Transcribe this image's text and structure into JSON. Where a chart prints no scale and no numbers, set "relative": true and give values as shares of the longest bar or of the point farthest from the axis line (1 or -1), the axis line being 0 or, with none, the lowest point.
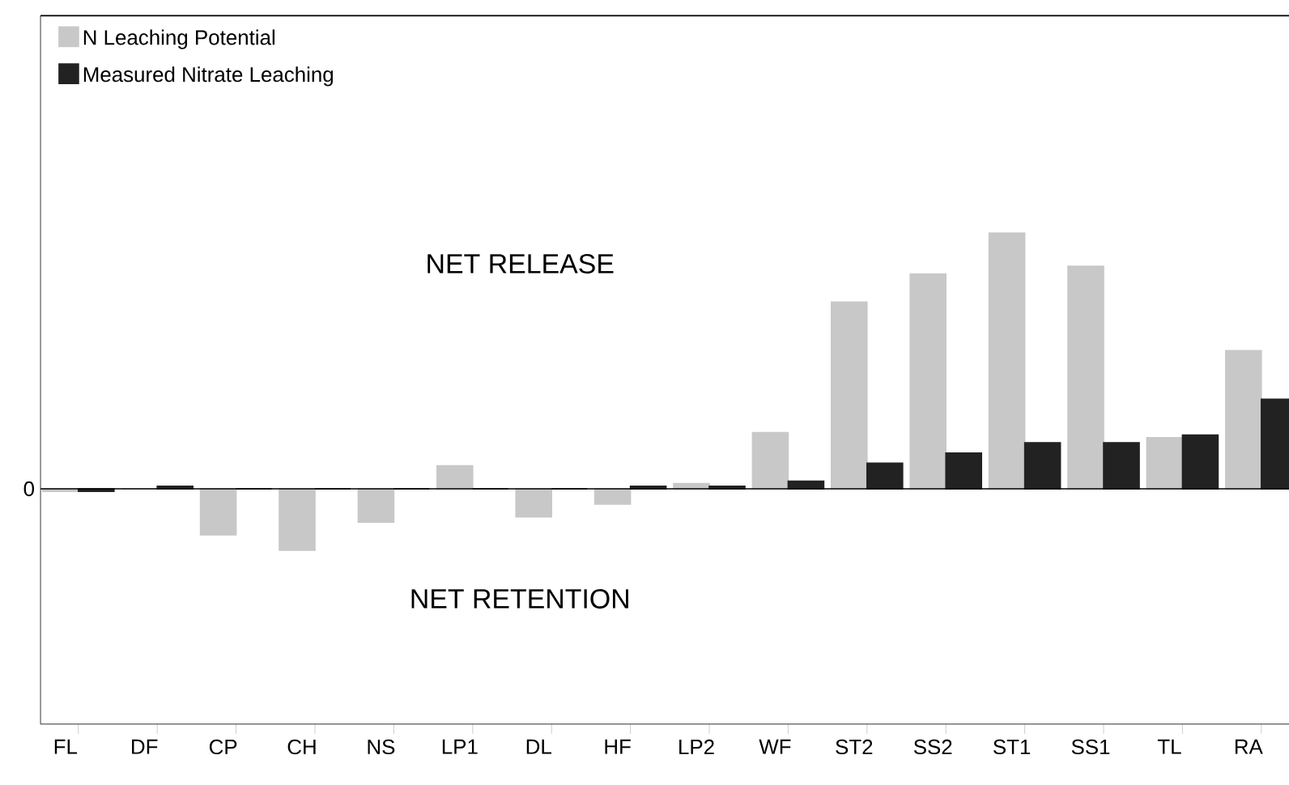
{
  "chart_data": {
    "type": "bar",
    "relative": true,
    "categories": [
      "FL",
      "DF",
      "CP",
      "CH",
      "NS",
      "LP1",
      "DL",
      "HF",
      "LP2",
      "WF",
      "ST2",
      "SS2",
      "ST1",
      "SS1",
      "TL",
      "RA"
    ],
    "series": [
      {
        "name": "N Leaching Potential",
        "color": "#c8c8c8",
        "values": [
          -0.01,
          0,
          -0.18,
          -0.24,
          -0.13,
          0.09,
          -0.11,
          -0.06,
          0.02,
          0.22,
          0.73,
          0.84,
          1,
          0.87,
          0.2,
          0.54
        ]
      },
      {
        "name": "Measured Nitrate Leaching",
        "color": "#222222",
        "values": [
          -0.01,
          0.01,
          0,
          0,
          0,
          0,
          0,
          0.01,
          0.01,
          0.03,
          0.1,
          0.14,
          0.18,
          0.18,
          0.21,
          0.35
        ]
      }
    ],
    "annotations": [
      "0",
      "NET RELEASE",
      "NET RETENTION"
    ],
    "legend": "top left"
  }
}
